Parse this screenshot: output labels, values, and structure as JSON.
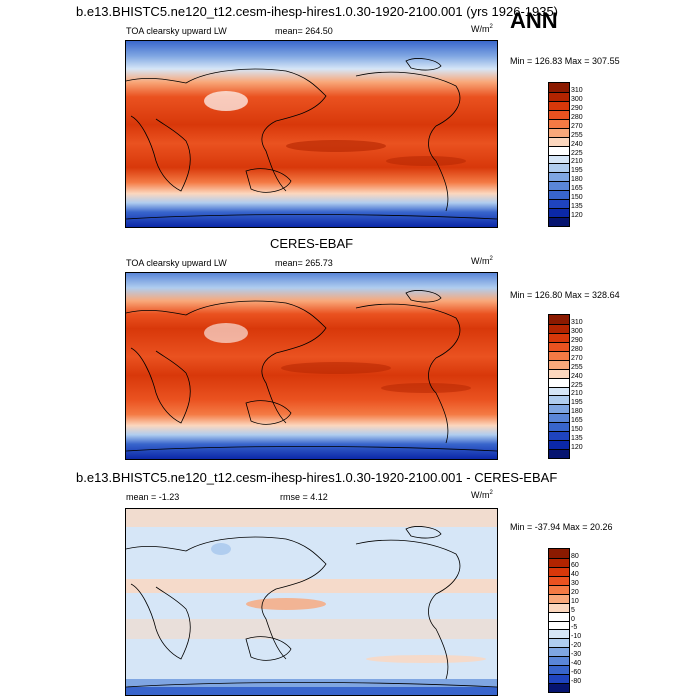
{
  "header": {
    "title": "b.e13.BHISTC5.ne120_t12.cesm-ihesp-hires1.0.30-1920-2100.001 (yrs 1926-1935)",
    "season": "ANN"
  },
  "panels": [
    {
      "variable": "TOA clearsky upward LW",
      "mean": "mean= 264.50",
      "units": "W/m",
      "units_exp": "2",
      "minmax": "Min = 126.83 Max = 307.55",
      "colorbar_levels": [
        "310",
        "300",
        "290",
        "280",
        "270",
        "255",
        "240",
        "225",
        "210",
        "195",
        "180",
        "165",
        "150",
        "135",
        "120"
      ],
      "colorbar_colors": [
        "#8b1a00",
        "#b22400",
        "#d8380a",
        "#ea5220",
        "#f47a44",
        "#f9a87a",
        "#fcd7be",
        "#ffffff",
        "#d6e6f7",
        "#b0cdef",
        "#7fa6e2",
        "#5a86d8",
        "#3865cc",
        "#1f44bf",
        "#0b28a8",
        "#061470"
      ]
    },
    {
      "section_title": "CERES-EBAF",
      "variable": "TOA clearsky upward LW",
      "mean": "mean= 265.73",
      "units": "W/m",
      "units_exp": "2",
      "minmax": "Min = 126.80 Max = 328.64",
      "colorbar_levels": [
        "310",
        "300",
        "290",
        "280",
        "270",
        "255",
        "240",
        "225",
        "210",
        "195",
        "180",
        "165",
        "150",
        "135",
        "120"
      ],
      "colorbar_colors": [
        "#8b1a00",
        "#b22400",
        "#d8380a",
        "#ea5220",
        "#f47a44",
        "#f9a87a",
        "#fcd7be",
        "#ffffff",
        "#d6e6f7",
        "#b0cdef",
        "#7fa6e2",
        "#5a86d8",
        "#3865cc",
        "#1f44bf",
        "#0b28a8",
        "#061470"
      ]
    },
    {
      "section_title": "b.e13.BHISTC5.ne120_t12.cesm-ihesp-hires1.0.30-1920-2100.001 - CERES-EBAF",
      "mean": "mean =  -1.23",
      "rmse": "rmse =   4.12",
      "units": "W/m",
      "units_exp": "2",
      "minmax": "Min = -37.94 Max =  20.26",
      "colorbar_levels": [
        "80",
        "60",
        "40",
        "30",
        "20",
        "10",
        "5",
        "0",
        "-5",
        "-10",
        "-20",
        "-30",
        "-40",
        "-60",
        "-80"
      ],
      "colorbar_colors": [
        "#8b1a00",
        "#b22400",
        "#d8380a",
        "#ea5220",
        "#f47a44",
        "#f9a87a",
        "#fcd7be",
        "#ffffff",
        "#ffffff",
        "#d6e6f7",
        "#b0cdef",
        "#7fa6e2",
        "#5a86d8",
        "#3865cc",
        "#1f44bf",
        "#061470"
      ]
    }
  ]
}
